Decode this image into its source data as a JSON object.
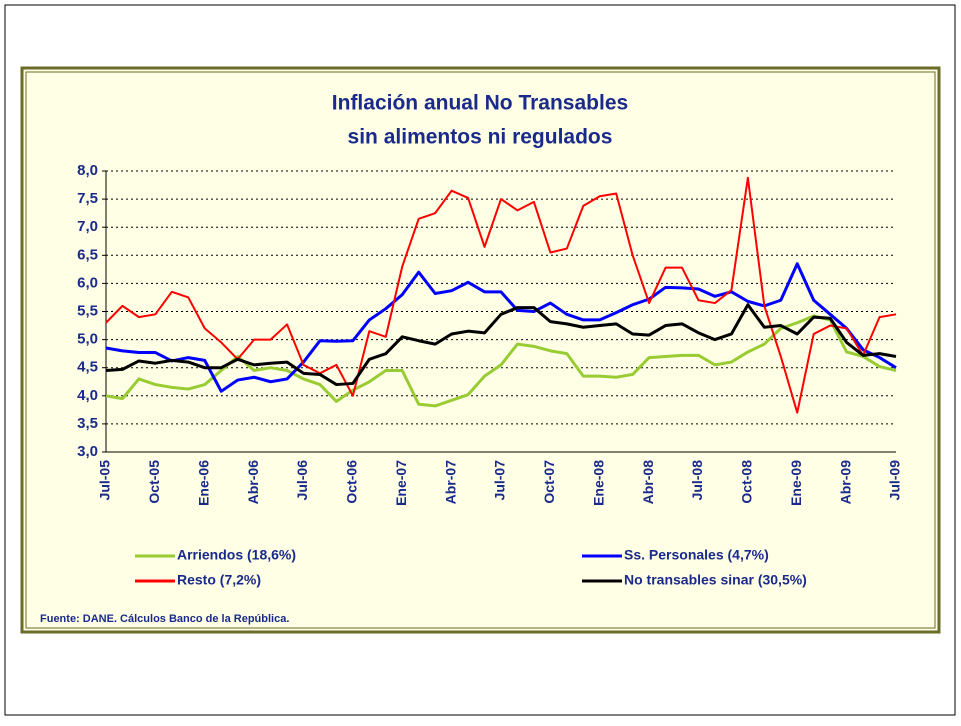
{
  "chart_data": {
    "type": "line",
    "title": [
      "Inflación anual No Transables",
      "sin alimentos ni regulados"
    ],
    "categories": [
      "Jul-05",
      null,
      null,
      "Oct-05",
      null,
      null,
      "Ene-06",
      null,
      null,
      "Abr-06",
      null,
      null,
      "Jul-06",
      null,
      null,
      "Oct-06",
      null,
      null,
      "Ene-07",
      null,
      null,
      "Abr-07",
      null,
      null,
      "Jul-07",
      null,
      null,
      "Oct-07",
      null,
      null,
      "Ene-08",
      null,
      null,
      "Abr-08",
      null,
      null,
      "Jul-08",
      null,
      null,
      "Oct-08",
      null,
      null,
      "Ene-09",
      null,
      null,
      "Abr-09",
      null,
      null,
      "Jul-09"
    ],
    "series": [
      {
        "name": "Arriendos (18,6%)",
        "color": "#99cc33",
        "values": [
          4.0,
          3.95,
          4.3,
          4.2,
          4.15,
          4.12,
          4.2,
          4.45,
          4.7,
          4.45,
          4.5,
          4.45,
          4.3,
          4.2,
          3.9,
          4.1,
          4.25,
          4.45,
          4.45,
          3.85,
          3.82,
          3.92,
          4.02,
          4.35,
          4.55,
          4.92,
          4.88,
          4.8,
          4.75,
          4.35,
          4.35,
          4.33,
          4.38,
          4.68,
          4.7,
          4.72,
          4.72,
          4.55,
          4.6,
          4.78,
          4.92,
          5.2,
          5.3,
          5.42,
          5.35,
          4.78,
          4.7,
          4.52,
          4.45
        ]
      },
      {
        "name": "Ss. Personales (4,7%)",
        "color": "#0000ff",
        "values": [
          4.85,
          4.8,
          4.77,
          4.77,
          4.62,
          4.68,
          4.63,
          4.08,
          4.28,
          4.33,
          4.25,
          4.3,
          4.6,
          4.98,
          4.97,
          4.98,
          5.35,
          5.55,
          5.8,
          6.2,
          5.82,
          5.87,
          6.02,
          5.85,
          5.85,
          5.52,
          5.5,
          5.65,
          5.45,
          5.35,
          5.35,
          5.48,
          5.62,
          5.72,
          5.93,
          5.92,
          5.9,
          5.77,
          5.85,
          5.68,
          5.6,
          5.7,
          6.35,
          5.7,
          5.45,
          5.2,
          4.82,
          4.68,
          4.5
        ]
      },
      {
        "name": "Resto (7,2%)",
        "color": "#ff0000",
        "values": [
          5.3,
          5.6,
          5.4,
          5.45,
          5.85,
          5.75,
          5.2,
          4.95,
          4.65,
          5.0,
          5.0,
          5.27,
          4.55,
          4.4,
          4.55,
          4.0,
          5.15,
          5.05,
          6.3,
          7.15,
          7.25,
          7.65,
          7.52,
          6.65,
          7.5,
          7.3,
          7.45,
          6.55,
          6.62,
          7.38,
          7.55,
          7.6,
          6.5,
          5.65,
          6.28,
          6.28,
          5.7,
          5.65,
          5.88,
          7.88,
          5.6,
          4.7,
          3.7,
          5.1,
          5.25,
          5.2,
          4.72,
          5.4,
          5.45
        ]
      },
      {
        "name": "No transables sinar (30,5%)",
        "color": "#000000",
        "values": [
          4.45,
          4.47,
          4.62,
          4.58,
          4.63,
          4.6,
          4.5,
          4.5,
          4.65,
          4.55,
          4.58,
          4.6,
          4.4,
          4.38,
          4.2,
          4.22,
          4.65,
          4.75,
          5.05,
          4.98,
          4.92,
          5.1,
          5.15,
          5.12,
          5.45,
          5.57,
          5.57,
          5.32,
          5.28,
          5.22,
          5.25,
          5.28,
          5.1,
          5.08,
          5.25,
          5.28,
          5.12,
          5.0,
          5.1,
          5.62,
          5.22,
          5.25,
          5.1,
          5.4,
          5.38,
          4.95,
          4.72,
          4.75,
          4.7
        ]
      }
    ],
    "ylim": [
      3,
      8
    ],
    "yticks": [
      {
        "value": 3,
        "label": "3,0"
      },
      {
        "value": 3.5,
        "label": "3,5"
      },
      {
        "value": 4,
        "label": "4,0"
      },
      {
        "value": 4.5,
        "label": "4,5"
      },
      {
        "value": 5,
        "label": "5,0"
      },
      {
        "value": 5.5,
        "label": "5,5"
      },
      {
        "value": 6,
        "label": "6,0"
      },
      {
        "value": 6.5,
        "label": "6,5"
      },
      {
        "value": 7,
        "label": "7,0"
      },
      {
        "value": 7.5,
        "label": "7,5"
      },
      {
        "value": 8,
        "label": "8,0"
      }
    ],
    "grid": true,
    "legend": "bottom",
    "source": "Fuente: DANE. Cálculos Banco de la República."
  }
}
